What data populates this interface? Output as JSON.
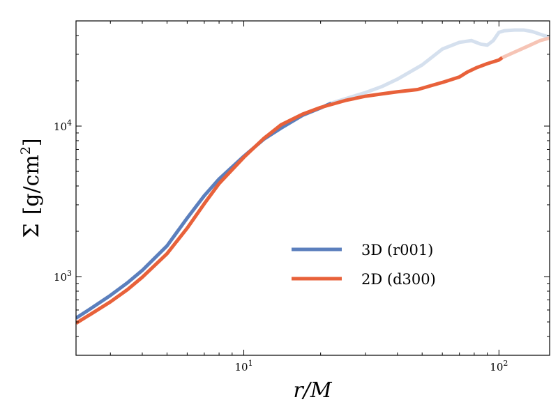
{
  "chart_data": {
    "type": "line",
    "xscale": "log",
    "yscale": "log",
    "xlim": [
      2.2,
      158
    ],
    "ylim": [
      300,
      50000
    ],
    "xlabel": "r/M",
    "ylabel": "Σ [g/cm²]",
    "ylabel_parts": {
      "sigma": "Σ",
      "open": "[g/cm",
      "sup": "2",
      "close": "]"
    },
    "x_ticks": [
      {
        "value": 10,
        "base": "10",
        "exp": "1"
      },
      {
        "value": 100,
        "base": "10",
        "exp": "2"
      }
    ],
    "y_ticks": [
      {
        "value": 1000,
        "base": "10",
        "exp": "3"
      },
      {
        "value": 10000,
        "base": "10",
        "exp": "4"
      }
    ],
    "legend_position": "center-right",
    "series": [
      {
        "name": "3D (r001)",
        "color": "#5b7fbd",
        "faded_color": "#d5e0ee",
        "fade_from_x": 22,
        "x": [
          2.2,
          2.5,
          3.0,
          3.5,
          4.0,
          5.0,
          6.0,
          7.0,
          8.0,
          10.0,
          12.0,
          14.0,
          17.0,
          20.0,
          22.0,
          25.0,
          30.0,
          35.0,
          40.0,
          50.0,
          60.0,
          70.0,
          78.0,
          85.0,
          90.0,
          95.0,
          100.0,
          105.0,
          115.0,
          125.0,
          135.0,
          150.0,
          158.0
        ],
        "y": [
          530,
          610,
          750,
          910,
          1100,
          1600,
          2450,
          3450,
          4450,
          6300,
          8200,
          9700,
          11800,
          13200,
          14200,
          15200,
          16700,
          18400,
          20500,
          25500,
          32500,
          36000,
          37000,
          35000,
          34500,
          37000,
          42000,
          43000,
          43500,
          43500,
          42500,
          40000,
          39000
        ]
      },
      {
        "name": "2D (d300)",
        "color": "#e8613a",
        "faded_color": "#f6c4b5",
        "fade_from_x": 103,
        "x": [
          2.2,
          2.5,
          3.0,
          3.5,
          4.0,
          5.0,
          6.0,
          7.0,
          8.0,
          10.0,
          12.0,
          14.0,
          17.0,
          20.0,
          25.0,
          30.0,
          35.0,
          40.0,
          48.0,
          55.0,
          60.0,
          70.0,
          75.0,
          82.0,
          90.0,
          100.0,
          103.0,
          115.0,
          130.0,
          145.0,
          158.0
        ],
        "y": [
          490,
          560,
          680,
          820,
          990,
          1420,
          2100,
          3050,
          4150,
          6200,
          8300,
          10200,
          12000,
          13300,
          14800,
          15800,
          16400,
          16900,
          17500,
          18700,
          19500,
          21200,
          22800,
          24500,
          26000,
          27500,
          28500,
          31000,
          34000,
          37000,
          38500
        ]
      }
    ]
  }
}
